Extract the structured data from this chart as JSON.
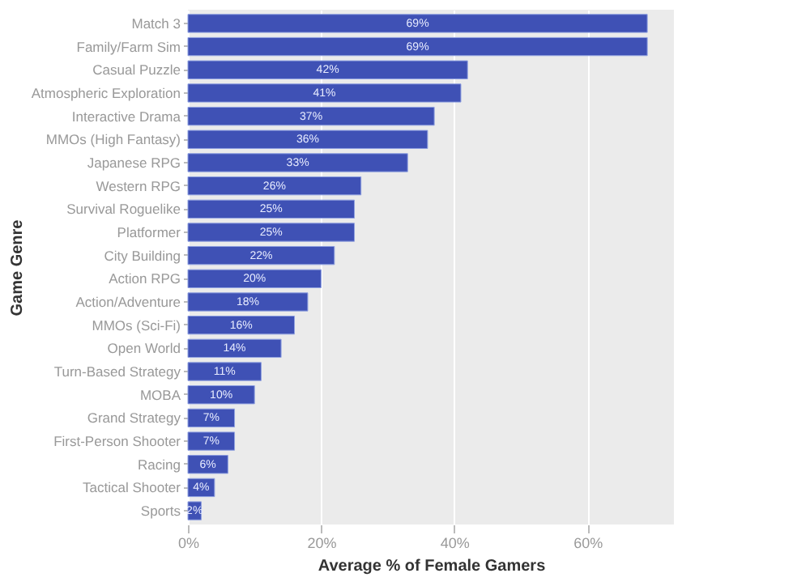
{
  "chart_data": {
    "type": "bar",
    "orientation": "horizontal",
    "xlabel": "Average % of Female Gamers",
    "ylabel": "Game Genre",
    "categories": [
      "Match 3",
      "Family/Farm Sim",
      "Casual Puzzle",
      "Atmospheric Exploration",
      "Interactive Drama",
      "MMOs (High Fantasy)",
      "Japanese RPG",
      "Western RPG",
      "Survival Roguelike",
      "Platformer",
      "City Building",
      "Action RPG",
      "Action/Adventure",
      "MMOs (Sci-Fi)",
      "Open World",
      "Turn-Based Strategy",
      "MOBA",
      "Grand Strategy",
      "First-Person Shooter",
      "Racing",
      "Tactical Shooter",
      "Sports"
    ],
    "values": [
      69,
      69,
      42,
      41,
      37,
      36,
      33,
      26,
      25,
      25,
      22,
      20,
      18,
      16,
      14,
      11,
      10,
      7,
      7,
      6,
      4,
      2
    ],
    "value_labels": [
      "69%",
      "69%",
      "42%",
      "41%",
      "37%",
      "36%",
      "33%",
      "26%",
      "25%",
      "25%",
      "22%",
      "20%",
      "18%",
      "16%",
      "14%",
      "11%",
      "10%",
      "7%",
      "7%",
      "6%",
      "4%",
      "2%"
    ],
    "color": "#3f51b5",
    "xlim": [
      0,
      73
    ],
    "xticks": [
      {
        "value": 0,
        "label": "0%"
      },
      {
        "value": 20,
        "label": "20%"
      },
      {
        "value": 40,
        "label": "40%"
      },
      {
        "value": 60,
        "label": "60%"
      }
    ],
    "grid": "x"
  }
}
